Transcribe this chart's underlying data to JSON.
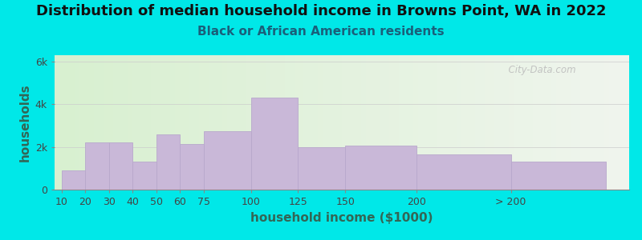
{
  "title": "Distribution of median household income in Browns Point, WA in 2022",
  "subtitle": "Black or African American residents",
  "xlabel": "household income ($1000)",
  "ylabel": "households",
  "bar_labels": [
    "10",
    "20",
    "30",
    "40",
    "50",
    "60",
    "75",
    "100",
    "125",
    "150",
    "200",
    "> 200"
  ],
  "bar_values": [
    900,
    2200,
    2200,
    1300,
    2600,
    2150,
    2750,
    4300,
    2000,
    2050,
    1650,
    1300
  ],
  "bar_left_edges": [
    0,
    1,
    2,
    3,
    4,
    5,
    6,
    8,
    10,
    12,
    15,
    19
  ],
  "bar_widths": [
    1,
    1,
    1,
    1,
    1,
    1,
    2,
    2,
    2,
    3,
    4,
    4
  ],
  "bar_color": "#c9b8d8",
  "bar_edge_color": "#b8a8cc",
  "background_outer": "#00e8e8",
  "background_inner_left": "#d8f0d0",
  "background_inner_right": "#f0f5ee",
  "ytick_labels": [
    "0",
    "2k",
    "4k",
    "6k"
  ],
  "ytick_values": [
    0,
    2000,
    4000,
    6000
  ],
  "ylim": [
    0,
    6300
  ],
  "xlim_left": -0.3,
  "xlim_right": 24,
  "title_fontsize": 13,
  "subtitle_fontsize": 11,
  "axis_label_fontsize": 11,
  "tick_label_fontsize": 9,
  "watermark": "  City-Data.com"
}
